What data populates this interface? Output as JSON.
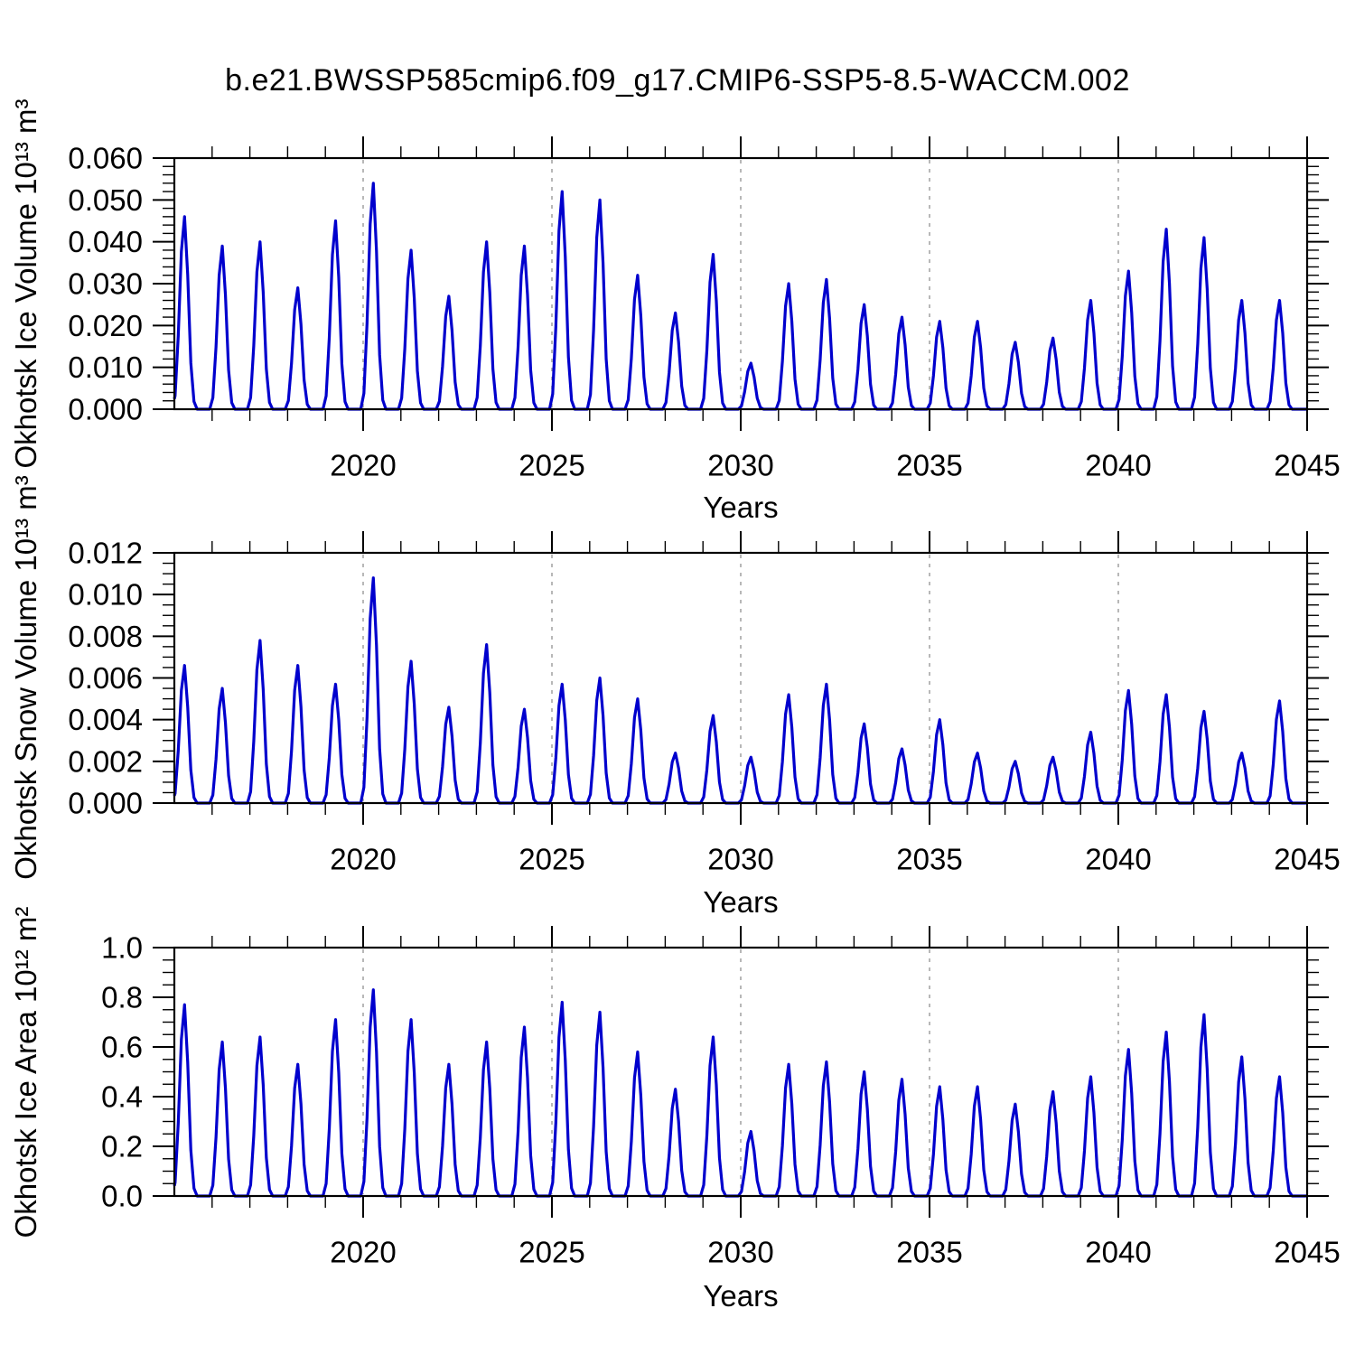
{
  "page": {
    "title": "b.e21.BWSSP585cmip6.f09_g17.CMIP6-SSP5-8.5-WACCM.002",
    "background": "#ffffff"
  },
  "style": {
    "line_color": "#0000cd",
    "axis_color": "#000000",
    "grid_color": "#a6a6a6",
    "text_color": "#000000"
  },
  "x_axis": {
    "label": "Years",
    "range": [
      2015.0,
      2045.0
    ],
    "major_ticks": [
      2020,
      2025,
      2030,
      2035,
      2040,
      2045
    ],
    "minor_tick_interval_years": 1,
    "gridlines_at": [
      2020,
      2025,
      2030,
      2035,
      2040
    ],
    "gridline_style": "dashed"
  },
  "chart_data": [
    {
      "type": "line",
      "name": "okhotsk-ice-volume",
      "title": "",
      "xlabel": "Years",
      "ylabel": "Okhotsk Ice Volume 10¹³ m³",
      "ylim": [
        0.0,
        0.06
      ],
      "ytick_labels": [
        "0.000",
        "0.010",
        "0.020",
        "0.030",
        "0.040",
        "0.050",
        "0.060"
      ],
      "y_minor_step": 0.002,
      "legend": "none",
      "grid": "vertical dashed gridlines at 5-year major ticks",
      "seasonality": "annual cycle: rises to a late-winter peak each year and returns to 0 every summer",
      "peak_years": [
        2015,
        2016,
        2017,
        2018,
        2019,
        2020,
        2021,
        2022,
        2023,
        2024,
        2025,
        2026,
        2027,
        2028,
        2029,
        2030,
        2031,
        2032,
        2033,
        2034,
        2035,
        2036,
        2037,
        2038,
        2039,
        2040,
        2041,
        2042,
        2043,
        2044
      ],
      "annual_peaks": [
        0.046,
        0.039,
        0.04,
        0.029,
        0.045,
        0.054,
        0.038,
        0.027,
        0.04,
        0.039,
        0.052,
        0.05,
        0.032,
        0.023,
        0.037,
        0.011,
        0.03,
        0.031,
        0.025,
        0.022,
        0.021,
        0.021,
        0.016,
        0.017,
        0.026,
        0.033,
        0.043,
        0.041,
        0.026,
        0.026
      ]
    },
    {
      "type": "line",
      "name": "okhotsk-snow-volume",
      "title": "",
      "xlabel": "Years",
      "ylabel": "Okhotsk Snow Volume 10¹³ m³",
      "ylim": [
        0.0,
        0.012
      ],
      "ytick_labels": [
        "0.000",
        "0.002",
        "0.004",
        "0.006",
        "0.008",
        "0.010",
        "0.012"
      ],
      "y_minor_step": 0.0005,
      "legend": "none",
      "grid": "vertical dashed gridlines at 5-year major ticks",
      "seasonality": "annual cycle: rises to a late-winter peak each year and returns to 0 every summer",
      "peak_years": [
        2015,
        2016,
        2017,
        2018,
        2019,
        2020,
        2021,
        2022,
        2023,
        2024,
        2025,
        2026,
        2027,
        2028,
        2029,
        2030,
        2031,
        2032,
        2033,
        2034,
        2035,
        2036,
        2037,
        2038,
        2039,
        2040,
        2041,
        2042,
        2043,
        2044
      ],
      "annual_peaks": [
        0.0066,
        0.0055,
        0.0078,
        0.0066,
        0.0057,
        0.0108,
        0.0068,
        0.0046,
        0.0076,
        0.0045,
        0.0057,
        0.006,
        0.005,
        0.0024,
        0.0042,
        0.0022,
        0.0052,
        0.0057,
        0.0038,
        0.0026,
        0.004,
        0.0024,
        0.002,
        0.0022,
        0.0034,
        0.0054,
        0.0052,
        0.0044,
        0.0024,
        0.0049
      ]
    },
    {
      "type": "line",
      "name": "okhotsk-ice-area",
      "title": "",
      "xlabel": "Years",
      "ylabel": "Okhotsk Ice Area 10¹² m²",
      "ylim": [
        0.0,
        1.0
      ],
      "ytick_labels": [
        "0.0",
        "0.2",
        "0.4",
        "0.6",
        "0.8",
        "1.0"
      ],
      "y_minor_step": 0.05,
      "legend": "none",
      "grid": "vertical dashed gridlines at 5-year major ticks",
      "seasonality": "annual cycle: rises to a late-winter peak each year and returns to 0 every summer",
      "peak_years": [
        2015,
        2016,
        2017,
        2018,
        2019,
        2020,
        2021,
        2022,
        2023,
        2024,
        2025,
        2026,
        2027,
        2028,
        2029,
        2030,
        2031,
        2032,
        2033,
        2034,
        2035,
        2036,
        2037,
        2038,
        2039,
        2040,
        2041,
        2042,
        2043,
        2044
      ],
      "annual_peaks": [
        0.77,
        0.62,
        0.64,
        0.53,
        0.71,
        0.83,
        0.71,
        0.53,
        0.62,
        0.68,
        0.78,
        0.74,
        0.58,
        0.43,
        0.64,
        0.26,
        0.53,
        0.54,
        0.5,
        0.47,
        0.44,
        0.44,
        0.37,
        0.42,
        0.48,
        0.59,
        0.66,
        0.73,
        0.56,
        0.48
      ]
    }
  ]
}
